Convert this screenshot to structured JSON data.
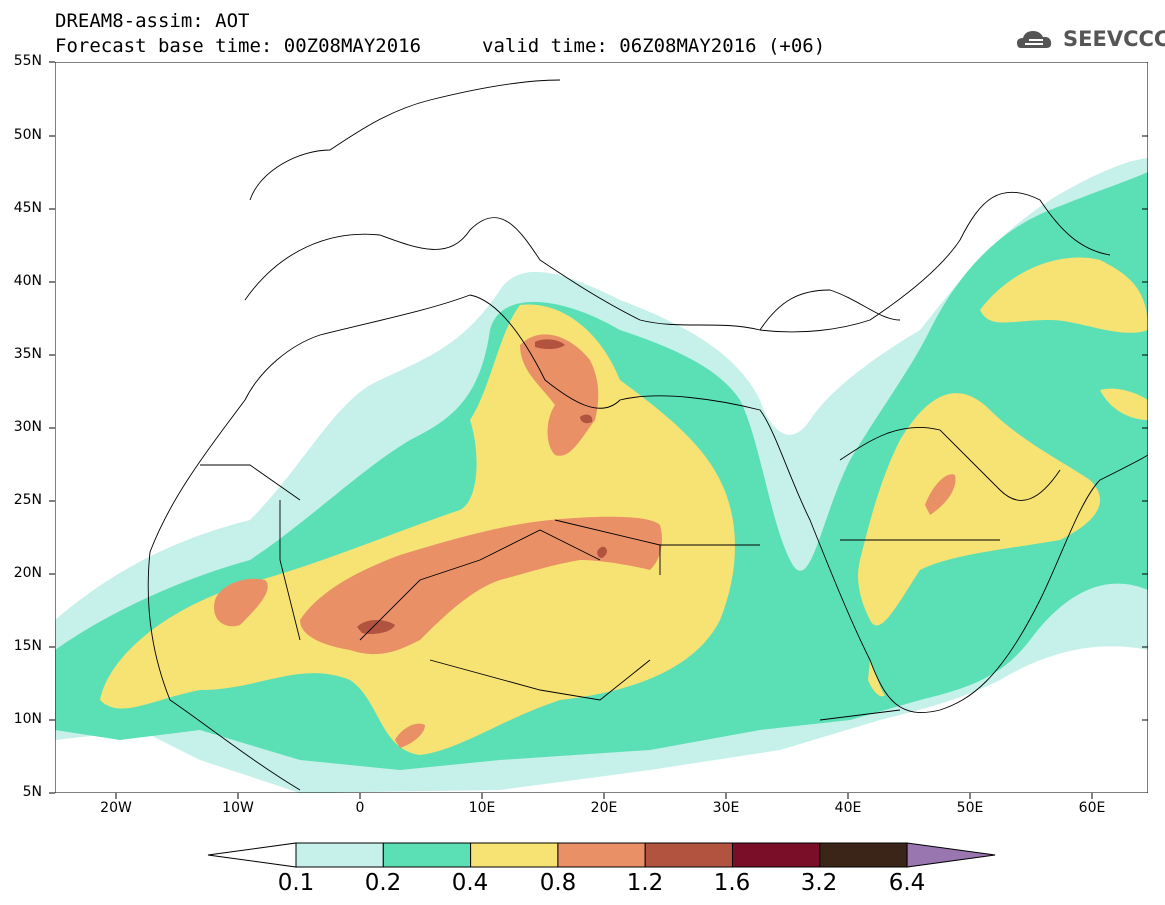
{
  "title": {
    "line1": "DREAM8-assim: AOT",
    "base": "Forecast base time: 00Z08MAY2016",
    "valid": "valid time: 06Z08MAY2016 (+06)"
  },
  "logo": {
    "text": "SEEVCCC",
    "icon": "cloud-icon"
  },
  "axes": {
    "lat_labels": [
      "55N",
      "50N",
      "45N",
      "40N",
      "35N",
      "30N",
      "25N",
      "20N",
      "15N",
      "10N",
      "5N"
    ],
    "lon_labels": [
      "20W",
      "10W",
      "0",
      "10E",
      "20E",
      "30E",
      "40E",
      "50E",
      "60E"
    ]
  },
  "colorbar": {
    "labels": [
      "0.1",
      "0.2",
      "0.4",
      "0.8",
      "1.2",
      "1.6",
      "3.2",
      "6.4"
    ],
    "colors": [
      "#ffffff",
      "#c6f0ea",
      "#5be0b6",
      "#f7e274",
      "#e99067",
      "#b1533f",
      "#7a0e28",
      "#3a2518",
      "#9976b0"
    ]
  }
}
